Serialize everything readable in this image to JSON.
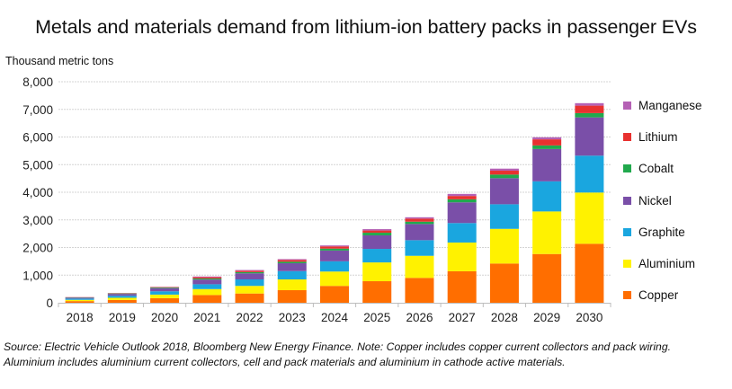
{
  "chart_data": {
    "type": "bar",
    "stacked": true,
    "title": "Metals and materials demand from lithium-ion battery packs in passenger EVs",
    "ylabel": "Thousand metric tons",
    "xlabel": "",
    "ylim": [
      0,
      8000
    ],
    "yticks": [
      0,
      1000,
      2000,
      3000,
      4000,
      5000,
      6000,
      7000,
      8000
    ],
    "ytick_labels": [
      "0",
      "1,000",
      "2,000",
      "3,000",
      "4,000",
      "5,000",
      "6,000",
      "7,000",
      "8,000"
    ],
    "grid": true,
    "legend_position": "right",
    "categories": [
      "2018",
      "2019",
      "2020",
      "2021",
      "2022",
      "2023",
      "2024",
      "2025",
      "2026",
      "2027",
      "2028",
      "2029",
      "2030"
    ],
    "series": [
      {
        "name": "Copper",
        "color": "#ff6e00",
        "values": [
          60,
          100,
          165,
          280,
          335,
          455,
          610,
          780,
          900,
          1140,
          1420,
          1765,
          2135
        ]
      },
      {
        "name": "Aluminium",
        "color": "#fff200",
        "values": [
          45,
          80,
          130,
          215,
          275,
          390,
          520,
          680,
          800,
          1040,
          1255,
          1540,
          1855
        ]
      },
      {
        "name": "Graphite",
        "color": "#1aa6df",
        "values": [
          45,
          75,
          120,
          175,
          235,
          300,
          370,
          490,
          565,
          705,
          890,
          1090,
          1335
        ]
      },
      {
        "name": "Nickel",
        "color": "#7a4fa8",
        "values": [
          35,
          65,
          110,
          170,
          220,
          285,
          390,
          490,
          585,
          750,
          945,
          1170,
          1385
        ]
      },
      {
        "name": "Cobalt",
        "color": "#21a94d",
        "values": [
          10,
          17,
          25,
          40,
          45,
          55,
          70,
          95,
          85,
          110,
          130,
          130,
          155
        ]
      },
      {
        "name": "Lithium",
        "color": "#e8312f",
        "values": [
          7,
          12,
          17,
          45,
          50,
          65,
          80,
          80,
          110,
          120,
          140,
          220,
          270
        ]
      },
      {
        "name": "Manganese",
        "color": "#b561b5",
        "values": [
          3,
          6,
          8,
          25,
          25,
          30,
          35,
          50,
          50,
          75,
          75,
          75,
          90
        ]
      }
    ],
    "legend_order": [
      "Manganese",
      "Lithium",
      "Cobalt",
      "Nickel",
      "Graphite",
      "Aluminium",
      "Copper"
    ]
  },
  "source_note": {
    "line1": "Source: Electric Vehicle Outlook 2018, Bloomberg New Energy Finance. Note: Copper includes copper current collectors and pack wiring.",
    "line2": "Aluminium includes aluminium current collectors, cell and pack materials and aluminium in cathode active materials."
  }
}
